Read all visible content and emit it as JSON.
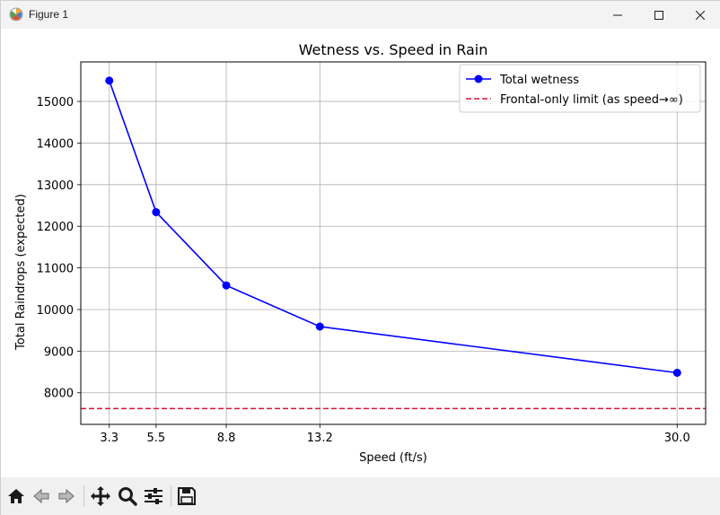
{
  "window": {
    "title": "Figure 1"
  },
  "toolbar": {
    "buttons": [
      "home-icon",
      "back-icon",
      "forward-icon",
      "pan-icon",
      "zoom-icon",
      "configure-subplots-icon",
      "save-icon"
    ]
  },
  "colors": {
    "series_line": "#0000ff",
    "reference_line": "#dc143c",
    "grid": "#b0b0b0",
    "titlebar": "#f3f3f3",
    "toolbar": "#f0f0f0"
  },
  "chart_data": {
    "type": "line",
    "title": "Wetness vs. Speed in Rain",
    "xlabel": "Speed (ft/s)",
    "ylabel": "Total Raindrops (expected)",
    "x_ticks": [
      3.3,
      5.5,
      8.8,
      13.2,
      30.0
    ],
    "x_tick_labels": [
      "3.3",
      "5.5",
      "8.8",
      "13.2",
      "30.0"
    ],
    "y_ticks": [
      8000,
      9000,
      10000,
      11000,
      12000,
      13000,
      14000,
      15000
    ],
    "y_tick_labels": [
      "8000",
      "9000",
      "10000",
      "11000",
      "12000",
      "13000",
      "14000",
      "15000"
    ],
    "xlim": [
      1.96,
      31.34
    ],
    "ylim": [
      7240,
      15950
    ],
    "grid": true,
    "legend_position": "upper right",
    "series": [
      {
        "name": "Total wetness",
        "style": "solid line with circle markers",
        "x": [
          3.3,
          5.5,
          8.8,
          13.2,
          30.0
        ],
        "y": [
          15500,
          12340,
          10580,
          9590,
          8480
        ]
      }
    ],
    "reference_lines": [
      {
        "name": "Frontal-only limit (as speed→∞)",
        "style": "dashed horizontal line",
        "y": 7620
      }
    ]
  }
}
